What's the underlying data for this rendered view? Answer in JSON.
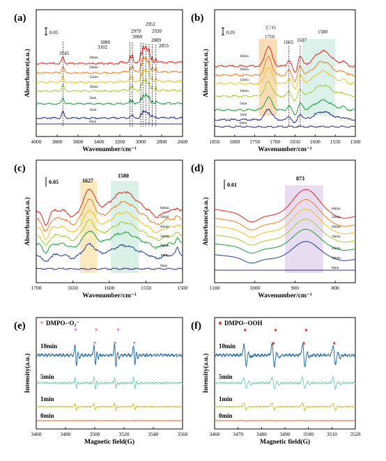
{
  "figure": {
    "panels": [
      "(a)",
      "(b)",
      "(c)",
      "(d)",
      "(e)",
      "(f)"
    ]
  },
  "chart_data": [
    {
      "id": "a",
      "type": "line",
      "panel_label": "(a)",
      "xlabel": "Wavenumber/cm⁻¹",
      "ylabel": "Absorbance(a.u.)",
      "xlim": [
        4000,
        2600
      ],
      "xticks": [
        4000,
        3800,
        3600,
        3400,
        3200,
        3000,
        2800,
        2600
      ],
      "scale_bar": "0.05",
      "scale_value": 0.05,
      "series_labels": [
        "0min",
        "1min",
        "5min",
        "10min",
        "15min",
        "20min",
        "30min"
      ],
      "series_colors": [
        "#3b2a80",
        "#1f2a8a",
        "#1b9c3c",
        "#a5cd30",
        "#f2c21e",
        "#ef7e22",
        "#e1261f"
      ],
      "peaks": [
        {
          "x": 3745,
          "label": "3745"
        },
        {
          "x": 3102,
          "label": "3102"
        },
        {
          "x": 3080,
          "label": "3080"
        },
        {
          "x": 3000,
          "label": "3000"
        },
        {
          "x": 2979,
          "label": "2979"
        },
        {
          "x": 2952,
          "label": "2952"
        },
        {
          "x": 2920,
          "label": "2920"
        },
        {
          "x": 2889,
          "label": "2889"
        },
        {
          "x": 2855,
          "label": "2855"
        }
      ]
    },
    {
      "id": "b",
      "type": "line",
      "panel_label": "(b)",
      "xlabel": "Wavenumber/cm⁻¹",
      "ylabel": "Absorbance(a.u.)",
      "xlim": [
        1850,
        1500
      ],
      "xticks": [
        1850,
        1800,
        1750,
        1700,
        1650,
        1600,
        1550,
        1500
      ],
      "scale_bar": "0.05",
      "scale_value": 0.05,
      "series_labels": [
        "0min",
        "1min",
        "5min",
        "10min",
        "15min",
        "20min",
        "30min"
      ],
      "series_colors": [
        "#3b2a80",
        "#1f2a8a",
        "#1b9c3c",
        "#a5cd30",
        "#f2c21e",
        "#ef7e22",
        "#e1261f"
      ],
      "bands": [
        {
          "from": 1740,
          "to": 1695,
          "color": "#f6d6a8",
          "label": "C=O 1716"
        },
        {
          "from": 1632,
          "to": 1550,
          "color": "#d6efe6",
          "label": "1580"
        }
      ],
      "peaks": [
        {
          "x": 1716,
          "label": "1716"
        },
        {
          "x": 1665,
          "label": "1665"
        },
        {
          "x": 1637,
          "label": "1637"
        },
        {
          "x": 1580,
          "label": "1580"
        }
      ],
      "annotation_co": "C=O"
    },
    {
      "id": "c",
      "type": "line",
      "panel_label": "(c)",
      "xlabel": "Wavenumber/cm⁻¹",
      "ylabel": "Absorbance(a.u.)",
      "xlim": [
        1700,
        1500
      ],
      "xticks": [
        1700,
        1650,
        1600,
        1550,
        1500
      ],
      "scale_bar": "0.05",
      "scale_value": 0.05,
      "series_labels": [
        "0min",
        "10min",
        "20min",
        "30min",
        "40min",
        "50min",
        "60min"
      ],
      "series_colors": [
        "#3b2a80",
        "#1f3f8f",
        "#1b9c3c",
        "#a5cd30",
        "#f2c21e",
        "#ef7e22",
        "#e1261f"
      ],
      "bands": [
        {
          "from": 1640,
          "to": 1617,
          "color": "#fbe8b8",
          "label": "1627"
        },
        {
          "from": 1598,
          "to": 1560,
          "color": "#d6efe6",
          "label": "1580"
        }
      ],
      "peaks": [
        {
          "x": 1627,
          "label": "1627"
        },
        {
          "x": 1580,
          "label": "1580"
        }
      ]
    },
    {
      "id": "d",
      "type": "line",
      "panel_label": "(d)",
      "xlabel": "Wavenumber/cm⁻¹",
      "ylabel": "Absorbance(a.u.)",
      "xlim": [
        1100,
        750
      ],
      "xticks": [
        1100,
        1000,
        900,
        800
      ],
      "scale_bar": "0.01",
      "scale_value": 0.01,
      "series_labels": [
        "0min",
        "10min",
        "20min",
        "30min",
        "40min",
        "50min",
        "60min"
      ],
      "series_colors": [
        "#3b2a80",
        "#1f3f8f",
        "#1b9c3c",
        "#a5cd30",
        "#f2c21e",
        "#ef7e22",
        "#e1261f"
      ],
      "bands": [
        {
          "from": 925,
          "to": 830,
          "color": "#e6d8f0",
          "label": "873"
        }
      ],
      "peaks": [
        {
          "x": 873,
          "label": "873"
        }
      ]
    },
    {
      "id": "e",
      "type": "line",
      "panel_label": "(e)",
      "xlabel": "Magnetic field(G)",
      "ylabel": "Intensity(a.u.)",
      "xlim": [
        3460,
        3560
      ],
      "xticks": [
        3460,
        3480,
        3500,
        3520,
        3540,
        3560
      ],
      "legend": "DMPO-·O₂⁻",
      "legend_color": "#e376c6",
      "series_labels": [
        "0min",
        "1min",
        "5min",
        "10min"
      ],
      "series_colors": [
        "#d9641e",
        "#c5c23f",
        "#7fcfb0",
        "#2f6f9f"
      ],
      "line_centers": [
        3487,
        3500,
        3514,
        3527
      ],
      "markers": [
        3487,
        3500,
        3501,
        3514,
        3516,
        3527
      ]
    },
    {
      "id": "f",
      "type": "line",
      "panel_label": "(f)",
      "xlabel": "Magnetic field(G)",
      "ylabel": "Intensity(a.u.)",
      "xlim": [
        3460,
        3520
      ],
      "xticks": [
        3460,
        3470,
        3480,
        3490,
        3500,
        3510,
        3520
      ],
      "legend": "DMPO-·OOH",
      "legend_color": "#e03a3a",
      "series_labels": [
        "0min",
        "1min",
        "5min",
        "10min"
      ],
      "series_colors": [
        "#d9641e",
        "#c5c23f",
        "#7fcfb0",
        "#2f6f9f"
      ],
      "line_centers": [
        3473,
        3485,
        3498,
        3511
      ],
      "markers": [
        3473,
        3485,
        3486,
        3498,
        3499,
        3511
      ]
    }
  ]
}
